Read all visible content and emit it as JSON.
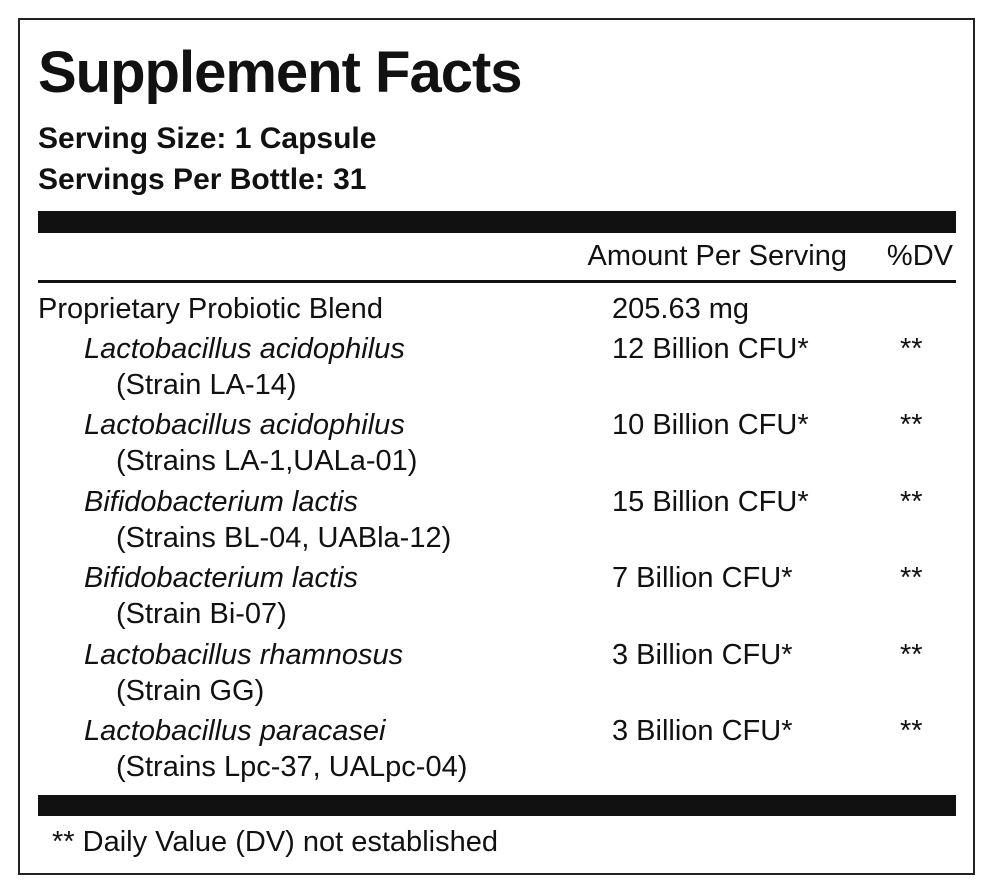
{
  "label": {
    "title": "Supplement Facts",
    "serving_size": "Serving Size: 1 Capsule",
    "servings_per_container": "Servings Per Bottle: 31",
    "header": {
      "amount": "Amount Per Serving",
      "dv": "%DV"
    },
    "blend": {
      "name": "Proprietary Probiotic Blend",
      "amount": "205.63 mg"
    },
    "ingredients": [
      {
        "name": "Lactobacillus acidophilus",
        "strain": "(Strain LA-14)",
        "amount": "12 Billion CFU*",
        "dv": "**"
      },
      {
        "name": "Lactobacillus acidophilus",
        "strain": "(Strains LA-1,UALa-01)",
        "amount": "10 Billion CFU*",
        "dv": "**"
      },
      {
        "name": "Bifidobacterium lactis",
        "strain": "(Strains BL-04, UABla-12)",
        "amount": "15 Billion CFU*",
        "dv": "**"
      },
      {
        "name": "Bifidobacterium lactis",
        "strain": "(Strain Bi-07)",
        "amount": "7 Billion CFU*",
        "dv": "**"
      },
      {
        "name": "Lactobacillus rhamnosus",
        "strain": "(Strain GG)",
        "amount": "3 Billion CFU*",
        "dv": "**"
      },
      {
        "name": "Lactobacillus paracasei",
        "strain": "(Strains Lpc-37, UALpc-04)",
        "amount": "3 Billion CFU*",
        "dv": "**"
      }
    ],
    "footnote": "** Daily Value (DV) not established"
  }
}
